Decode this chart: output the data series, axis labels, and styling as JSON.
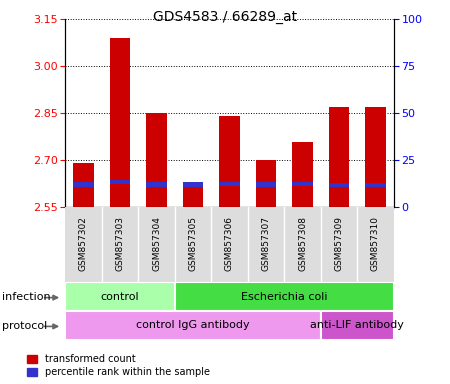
{
  "title": "GDS4583 / 66289_at",
  "samples": [
    "GSM857302",
    "GSM857303",
    "GSM857304",
    "GSM857305",
    "GSM857306",
    "GSM857307",
    "GSM857308",
    "GSM857309",
    "GSM857310"
  ],
  "transformed_counts": [
    2.69,
    3.09,
    2.85,
    2.63,
    2.84,
    2.7,
    2.76,
    2.87,
    2.87
  ],
  "blue_bar_positions": [
    2.623,
    2.63,
    2.623,
    2.623,
    2.625,
    2.623,
    2.625,
    2.622,
    2.62
  ],
  "bar_bottom": 2.55,
  "ylim": [
    2.55,
    3.15
  ],
  "yticks_left": [
    2.55,
    2.7,
    2.85,
    3.0,
    3.15
  ],
  "yticks_right": [
    0,
    25,
    50,
    75,
    100
  ],
  "bar_color_red": "#cc0000",
  "bar_color_blue": "#3333cc",
  "plot_bg": "#ffffff",
  "infection_groups": [
    {
      "label": "control",
      "start": 0,
      "end": 3,
      "color": "#aaffaa"
    },
    {
      "label": "Escherichia coli",
      "start": 3,
      "end": 9,
      "color": "#44dd44"
    }
  ],
  "protocol_groups": [
    {
      "label": "control IgG antibody",
      "start": 0,
      "end": 7,
      "color": "#ee99ee"
    },
    {
      "label": "anti-LIF antibody",
      "start": 7,
      "end": 9,
      "color": "#cc55cc"
    }
  ],
  "infection_label": "infection",
  "protocol_label": "protocol",
  "legend_red": "transformed count",
  "legend_blue": "percentile rank within the sample",
  "title_fontsize": 10,
  "tick_fontsize": 8,
  "label_fontsize": 8,
  "group_fontsize": 8
}
